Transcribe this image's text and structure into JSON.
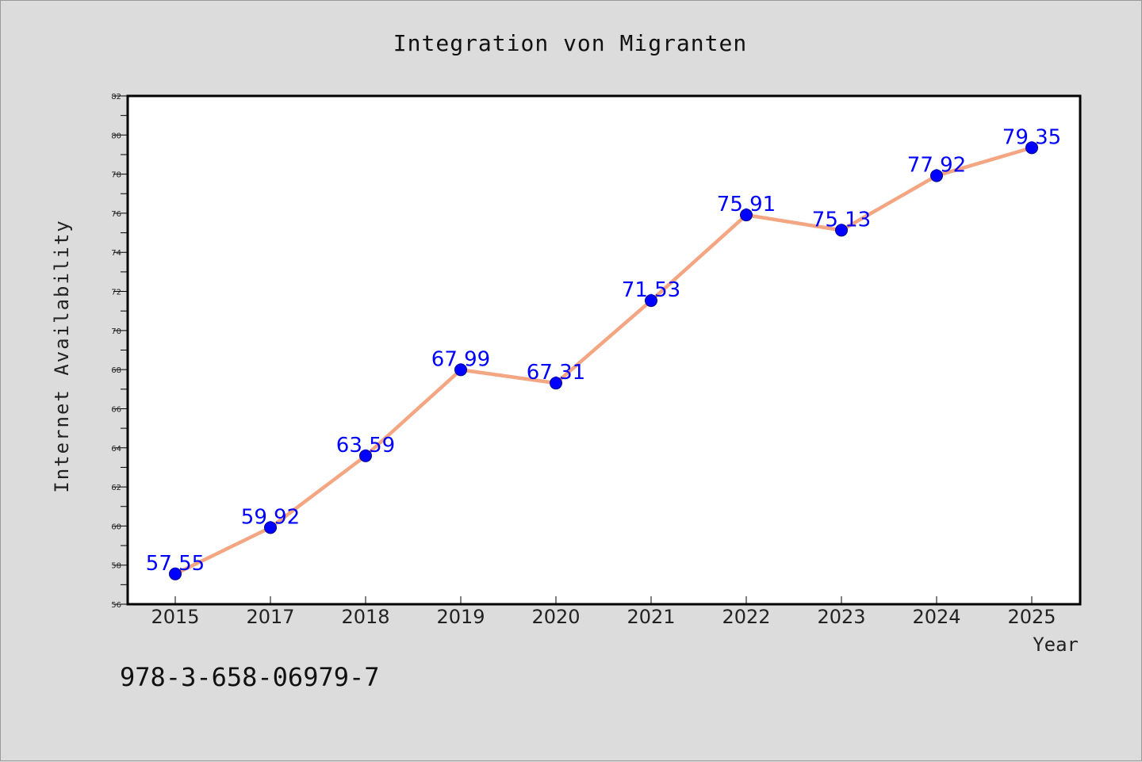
{
  "figure": {
    "title": "Integration von Migranten",
    "isbn": "978-3-658-06979-7"
  },
  "chart_data": {
    "type": "line",
    "title": "Integration von Migranten",
    "xlabel": "Year",
    "ylabel": "Internet Availability",
    "categories": [
      "2015",
      "2017",
      "2018",
      "2019",
      "2020",
      "2021",
      "2022",
      "2023",
      "2024",
      "2025"
    ],
    "values": [
      57.55,
      59.92,
      63.59,
      67.99,
      67.31,
      71.53,
      75.91,
      75.13,
      77.92,
      79.35
    ],
    "labels": [
      "57.55",
      "59.92",
      "63.59",
      "67.99",
      "67.31",
      "71.53",
      "75.91",
      "75.13",
      "77.92",
      "79.35"
    ],
    "ylim": [
      56,
      82
    ],
    "yticks": [
      56,
      58,
      60,
      62,
      64,
      66,
      68,
      70,
      72,
      74,
      76,
      78,
      80,
      82
    ],
    "grid": false,
    "legend": "none",
    "colors": {
      "line": "#f4a582",
      "marker": "#0000ff",
      "label": "#0000ff",
      "background": "#dcdcdc",
      "plot": "#ffffff"
    }
  }
}
